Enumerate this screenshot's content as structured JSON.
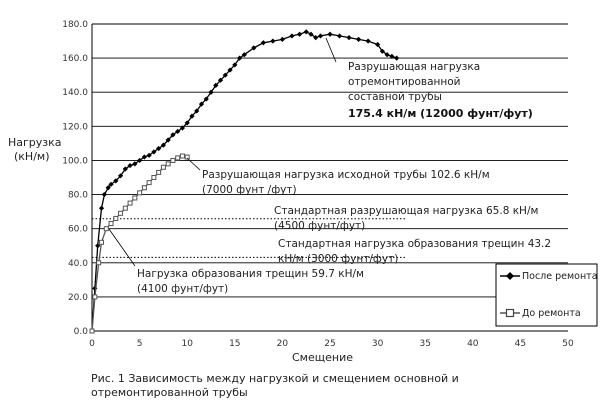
{
  "chart_data": {
    "type": "line",
    "ylabel_line1": "Нагрузка",
    "ylabel_line2": "(кН/м)",
    "xlabel": "Смещение",
    "xlim": [
      0,
      50
    ],
    "ylim": [
      0,
      180
    ],
    "grid": "horizontal",
    "x_ticks": [
      "0",
      "5",
      "10",
      "15",
      "20",
      "25",
      "30",
      "35",
      "40",
      "45",
      "50"
    ],
    "y_ticks": [
      "0.0",
      "20.0",
      "40.0",
      "60.0",
      "80.0",
      "100.0",
      "120.0",
      "140.0",
      "160.0",
      "180.0"
    ],
    "legend_position": "bottom-right",
    "series": [
      {
        "name": "После ремонта",
        "color": "#000000",
        "marker": "diamond",
        "x": [
          0,
          0.3,
          0.6,
          1.0,
          1.3,
          1.7,
          2.0,
          2.5,
          3.0,
          3.5,
          4.0,
          4.5,
          5.0,
          5.5,
          6.0,
          6.5,
          7.0,
          7.5,
          8.0,
          8.5,
          9.0,
          9.5,
          10.0,
          10.5,
          11.0,
          11.5,
          12.0,
          12.5,
          13.0,
          13.5,
          14.0,
          14.5,
          15.0,
          15.5,
          16.0,
          17.0,
          18.0,
          19.0,
          20.0,
          21.0,
          21.8,
          22.5,
          23.0,
          23.5,
          24.0,
          25.0,
          26.0,
          27.0,
          28.0,
          29.0,
          30.0,
          30.5,
          31.0,
          31.5,
          32.0
        ],
        "y": [
          0,
          25,
          50,
          72,
          80,
          84,
          86,
          88,
          91,
          95,
          97,
          98,
          100,
          102,
          103,
          105,
          107,
          109,
          112,
          115,
          117,
          119,
          122,
          126,
          129,
          133,
          136,
          140,
          144,
          147,
          150,
          153,
          156,
          160,
          162,
          166,
          169,
          170,
          171,
          173,
          174,
          175.4,
          174,
          172,
          173,
          174,
          173,
          172,
          171,
          170,
          168,
          164,
          162,
          161,
          160
        ]
      },
      {
        "name": "До ремонта",
        "color": "#555555",
        "marker": "square",
        "x": [
          0,
          0.3,
          0.7,
          1.0,
          1.5,
          2.0,
          2.5,
          3.0,
          3.5,
          4.0,
          4.5,
          5.0,
          5.5,
          6.0,
          6.5,
          7.0,
          7.5,
          8.0,
          8.5,
          9.0,
          9.5,
          10.0
        ],
        "y": [
          0,
          20,
          40,
          52,
          60,
          63,
          66,
          69,
          72,
          75,
          78,
          81,
          84,
          87,
          90,
          93,
          96,
          98,
          100,
          101.5,
          102.6,
          102
        ]
      }
    ],
    "reference_lines": [
      {
        "y": 65.8,
        "style": "dotted"
      },
      {
        "y": 43.2,
        "style": "dotted"
      }
    ],
    "annotations": {
      "repaired_failure": {
        "lines": [
          "Разрушающая нагрузка",
          "отремонтированной",
          "составной  трубы"
        ],
        "bold_line": "175.4 кН/м (12000 фунт/фут)"
      },
      "original_failure": {
        "lines": [
          "Разрушающая нагрузка исходной трубы  102.6 кН/м",
          "(7000 фунт /фут)"
        ]
      },
      "standard_failure": {
        "lines": [
          "Стандартная разрушающая нагрузка 65.8 кН/м",
          "(4500 фунт/фут)"
        ]
      },
      "standard_crack": {
        "lines": [
          "Стандартная нагрузка образования трещин 43.2",
          "кН/м (3000 фунт/фут)"
        ]
      },
      "crack_load": {
        "lines": [
          "Нагрузка образования трещин 59.7 кН/м",
          "(4100 фунт/фут)"
        ]
      }
    }
  },
  "caption": "Рис. 1 Зависимость между нагрузкой и смещением основной и отремонтированной трубы"
}
